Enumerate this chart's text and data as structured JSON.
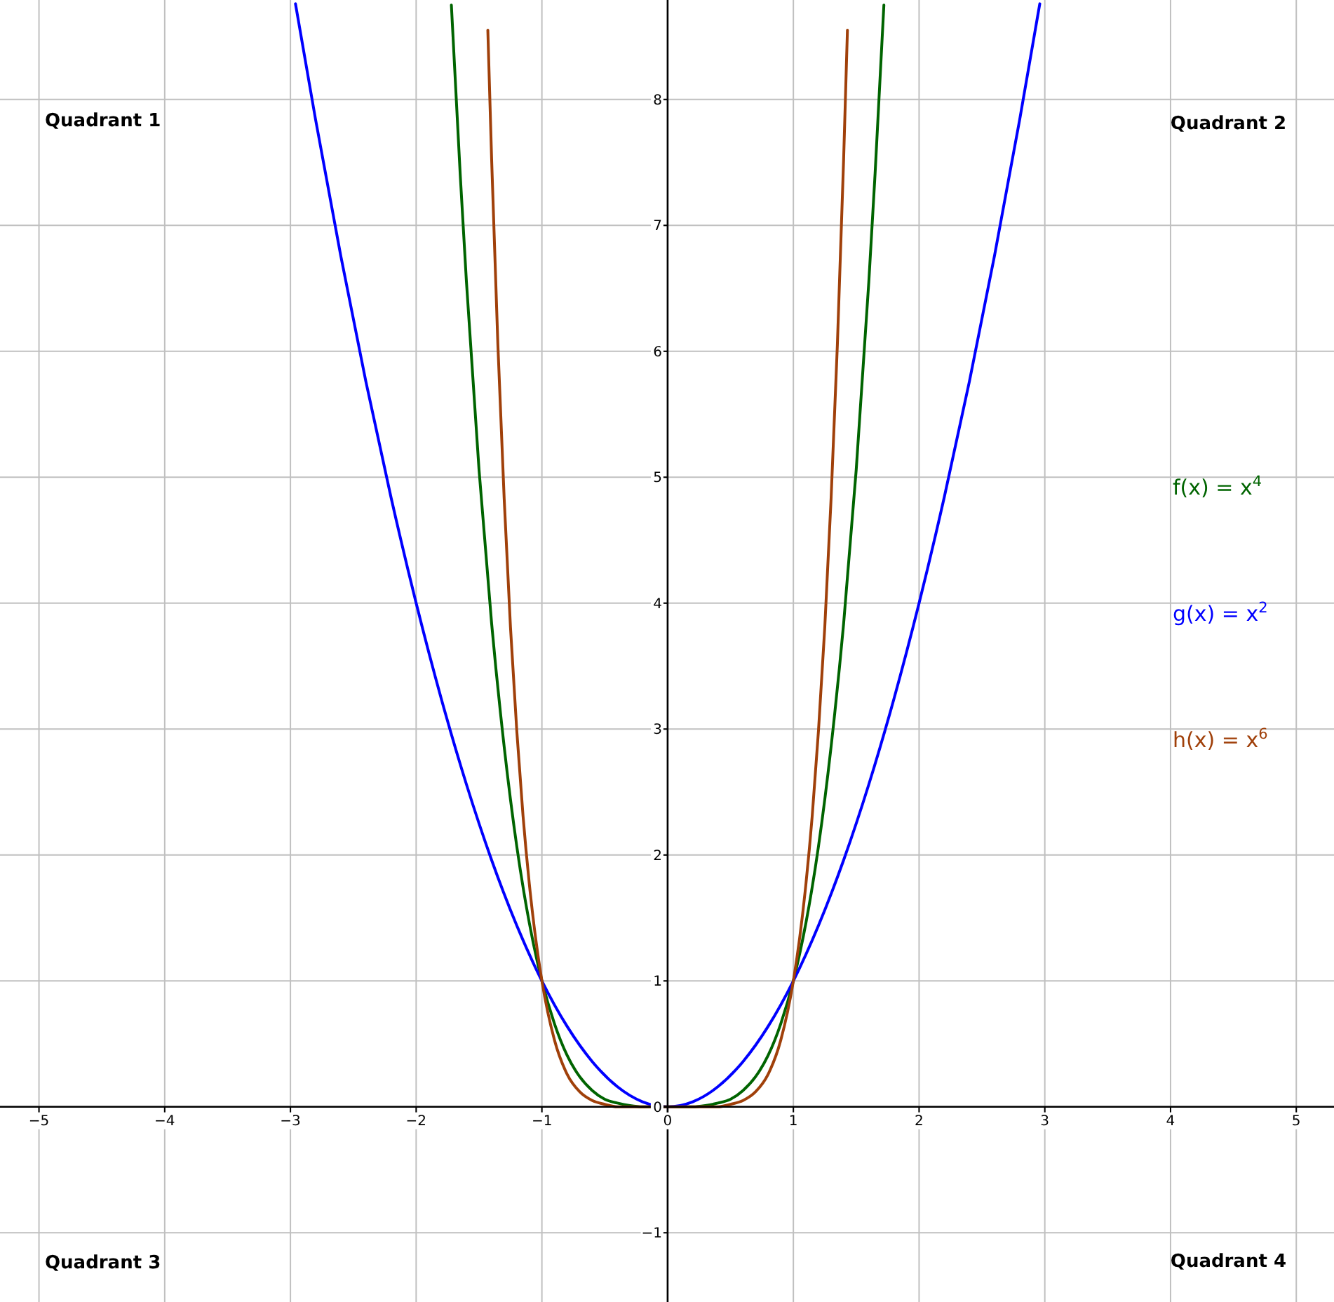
{
  "chart_data": {
    "type": "line",
    "xlim": [
      -5.31,
      5.3
    ],
    "ylim": [
      -1.55,
      8.79
    ],
    "xticks": [
      {
        "value": -5,
        "label": "−5"
      },
      {
        "value": -4,
        "label": "−4"
      },
      {
        "value": -3,
        "label": "−3"
      },
      {
        "value": -2,
        "label": "−2"
      },
      {
        "value": -1,
        "label": "−1"
      },
      0,
      1,
      2,
      3,
      4,
      5
    ],
    "yticks": [
      {
        "value": -1,
        "label": "−1"
      },
      0,
      1,
      2,
      3,
      4,
      5,
      6,
      7,
      8
    ],
    "grid": true,
    "legend": "right",
    "marker": "none",
    "line_style": "solid",
    "annotations": [
      "Quadrant 1",
      "Quadrant 2",
      "Quadrant 3",
      "Quadrant 4"
    ],
    "series": [
      {
        "name": "f(x) = x$^{4}$",
        "color": "#006400",
        "x": [
          -1.72,
          -1.65,
          -1.6,
          -1.5,
          -1.4,
          -1.3,
          -1.2,
          -1.1,
          -1,
          -0.9,
          -0.8,
          -0.7,
          -0.6,
          -0.5,
          -0.4,
          -0.3,
          -0.2,
          0,
          0.2,
          0.3,
          0.4,
          0.5,
          0.6,
          0.7,
          0.8,
          0.9,
          1,
          1.1,
          1.2,
          1.3,
          1.4,
          1.5,
          1.6,
          1.65,
          1.72
        ],
        "values": [
          8.75,
          7.41,
          6.55,
          5.06,
          3.84,
          2.86,
          2.07,
          1.46,
          1,
          0.66,
          0.41,
          0.24,
          0.13,
          0.06,
          0.03,
          0.01,
          0,
          0,
          0,
          0.01,
          0.03,
          0.06,
          0.13,
          0.24,
          0.41,
          0.66,
          1,
          1.46,
          2.07,
          2.86,
          3.84,
          5.06,
          6.55,
          7.41,
          8.75
        ]
      },
      {
        "name": "g(x) = x$^{2}$",
        "color": "#0000ff",
        "x": [
          -2.96,
          -2.8,
          -2.6,
          -2.4,
          -2.2,
          -2,
          -1.8,
          -1.6,
          -1.4,
          -1.2,
          -1,
          -0.8,
          -0.6,
          -0.4,
          -0.2,
          0,
          0.2,
          0.4,
          0.6,
          0.8,
          1,
          1.2,
          1.4,
          1.6,
          1.8,
          2,
          2.2,
          2.4,
          2.6,
          2.8,
          2.96
        ],
        "values": [
          8.76,
          7.84,
          6.76,
          5.76,
          4.84,
          4,
          3.24,
          2.56,
          1.96,
          1.44,
          1,
          0.64,
          0.36,
          0.16,
          0.04,
          0,
          0.04,
          0.16,
          0.36,
          0.64,
          1,
          1.44,
          1.96,
          2.56,
          3.24,
          4,
          4.84,
          5.76,
          6.76,
          7.84,
          8.76
        ]
      },
      {
        "name": "h(x) = x$^{6}$",
        "color": "#a0400a",
        "x": [
          -1.43,
          -1.4,
          -1.35,
          -1.3,
          -1.25,
          -1.2,
          -1.15,
          -1.1,
          -1.05,
          -1,
          -0.9,
          -0.8,
          -0.7,
          -0.6,
          -0.5,
          -0.4,
          0,
          0.4,
          0.5,
          0.6,
          0.7,
          0.8,
          0.9,
          1,
          1.05,
          1.1,
          1.15,
          1.2,
          1.25,
          1.3,
          1.35,
          1.4,
          1.43
        ],
        "values": [
          8.55,
          7.53,
          6.05,
          4.83,
          3.81,
          2.99,
          2.31,
          1.77,
          1.34,
          1,
          0.53,
          0.26,
          0.12,
          0.05,
          0.02,
          0,
          0,
          0,
          0.02,
          0.05,
          0.12,
          0.26,
          0.53,
          1,
          1.34,
          1.77,
          2.31,
          2.99,
          3.81,
          4.83,
          6.05,
          7.53,
          8.55
        ]
      }
    ]
  }
}
